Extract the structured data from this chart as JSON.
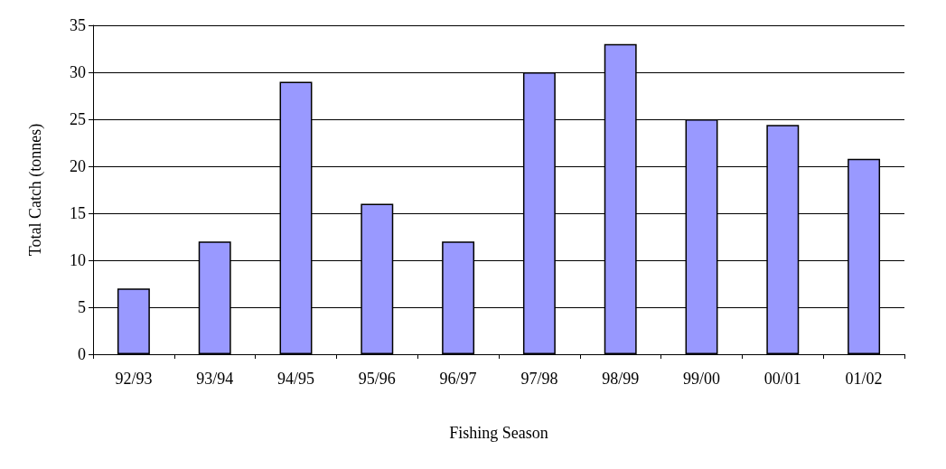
{
  "chart_data": {
    "type": "bar",
    "xlabel": "Fishing Season",
    "ylabel": "Total Catch (tonnes)",
    "categories": [
      "92/93",
      "93/94",
      "94/95",
      "95/96",
      "96/97",
      "97/98",
      "98/99",
      "99/00",
      "00/01",
      "01/02"
    ],
    "values": [
      7,
      12,
      29,
      16,
      12,
      30,
      33,
      25,
      24.4,
      20.8
    ],
    "color": "#9999ff",
    "ylim": [
      0,
      35
    ],
    "yticks": [
      0,
      5,
      10,
      15,
      20,
      25,
      30,
      35
    ],
    "grid": "y"
  }
}
